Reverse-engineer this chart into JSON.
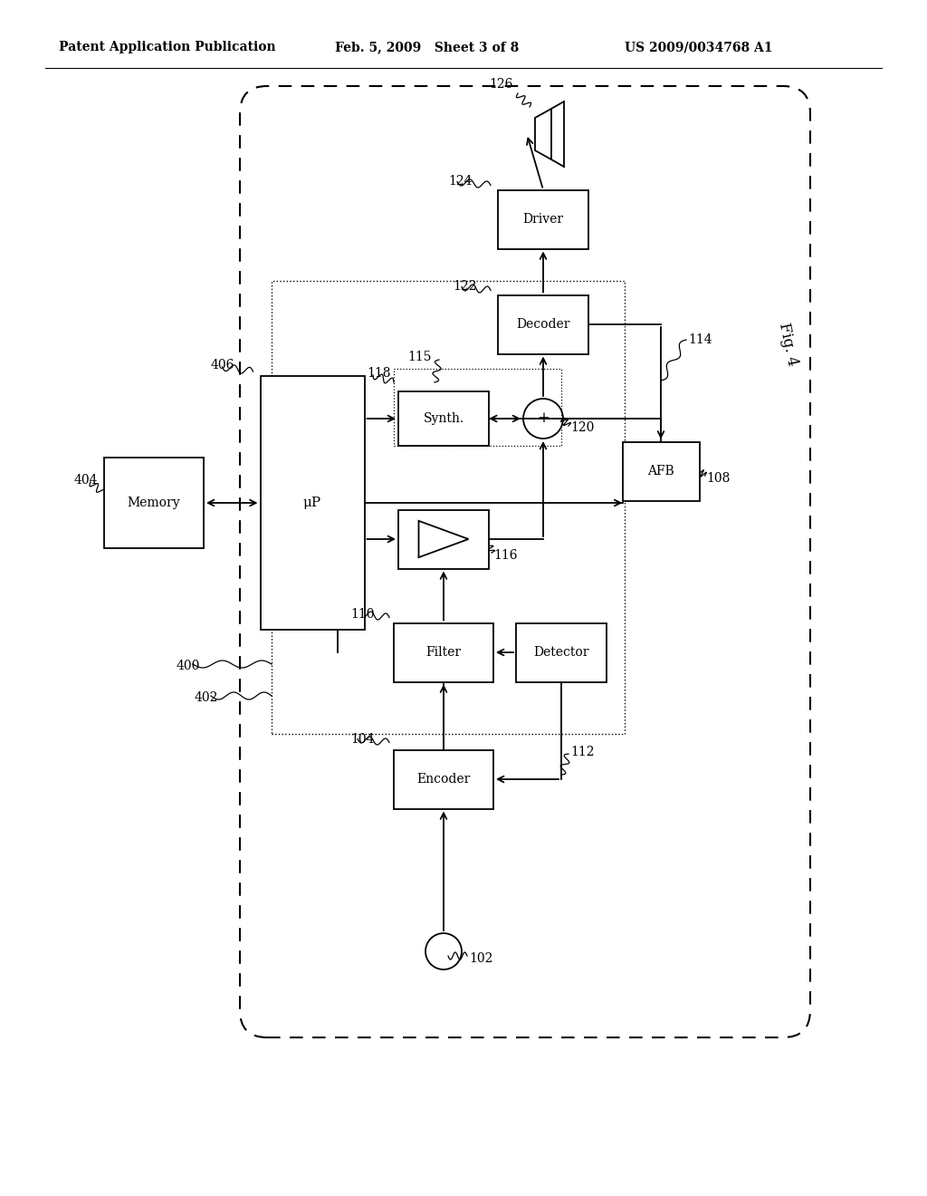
{
  "header_left": "Patent Application Publication",
  "header_mid": "Feb. 5, 2009   Sheet 3 of 8",
  "header_right": "US 2009/0034768 A1",
  "fig_label": "Fig. 4",
  "bg": "#ffffff"
}
